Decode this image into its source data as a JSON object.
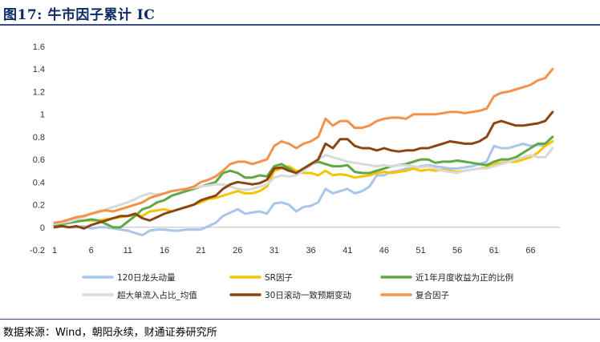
{
  "figure": {
    "title": "图17: 牛市因子累计 IC",
    "source": "数据来源：Wind，朝阳永续，财通证券研究所"
  },
  "colors": {
    "title": "#0b2a63",
    "rule": "#3a4f80"
  },
  "chart_data": {
    "type": "line",
    "title": "",
    "xlabel": "",
    "ylabel": "",
    "ylim": [
      -0.2,
      1.6
    ],
    "yticks": [
      -0.2,
      0,
      0.2,
      0.4,
      0.6,
      0.8,
      1,
      1.2,
      1.4,
      1.6
    ],
    "ytick_labels": [
      "-0.2",
      "0",
      "0.2",
      "0.4",
      "0.6",
      "0.8",
      "1",
      "1.2",
      "1.4",
      "1.6"
    ],
    "xlim": [
      1,
      70
    ],
    "xtick_labels": [
      "1",
      "6",
      "11",
      "16",
      "21",
      "26",
      "31",
      "36",
      "41",
      "46",
      "51",
      "56",
      "61",
      "66"
    ],
    "grid": false,
    "legend_position": "bottom",
    "series": [
      {
        "name": "120日龙头动量",
        "color": "#a9c5ea",
        "values": [
          0.03,
          0.02,
          0.0,
          0.0,
          0.01,
          -0.01,
          0.0,
          0.0,
          -0.01,
          -0.02,
          -0.03,
          -0.05,
          -0.07,
          -0.03,
          -0.02,
          -0.02,
          -0.03,
          -0.03,
          -0.02,
          -0.02,
          -0.02,
          0.01,
          0.04,
          0.1,
          0.13,
          0.16,
          0.12,
          0.13,
          0.14,
          0.12,
          0.21,
          0.22,
          0.2,
          0.14,
          0.18,
          0.19,
          0.22,
          0.34,
          0.3,
          0.32,
          0.34,
          0.3,
          0.32,
          0.36,
          0.46,
          0.46,
          0.49,
          0.5,
          0.52,
          0.52,
          0.54,
          0.55,
          0.54,
          0.53,
          0.52,
          0.52,
          0.53,
          0.54,
          0.56,
          0.58,
          0.72,
          0.7,
          0.7,
          0.72,
          0.74,
          0.72,
          0.73,
          0.72,
          0.76
        ]
      },
      {
        "name": "SR因子",
        "color": "#f6c400",
        "values": [
          0.02,
          0.03,
          0.04,
          0.05,
          0.06,
          0.06,
          0.06,
          0.07,
          0.08,
          0.09,
          0.1,
          0.11,
          0.1,
          0.14,
          0.15,
          0.16,
          0.14,
          0.16,
          0.18,
          0.2,
          0.22,
          0.25,
          0.26,
          0.28,
          0.3,
          0.32,
          0.3,
          0.3,
          0.32,
          0.36,
          0.5,
          0.52,
          0.54,
          0.5,
          0.48,
          0.48,
          0.46,
          0.5,
          0.46,
          0.47,
          0.46,
          0.44,
          0.45,
          0.46,
          0.48,
          0.49,
          0.48,
          0.49,
          0.5,
          0.52,
          0.5,
          0.51,
          0.5,
          0.51,
          0.5,
          0.49,
          0.5,
          0.51,
          0.52,
          0.53,
          0.56,
          0.57,
          0.58,
          0.58,
          0.6,
          0.62,
          0.66,
          0.72,
          0.76
        ]
      },
      {
        "name": "近1年月度收益为正的比例",
        "color": "#5fa843",
        "values": [
          0.02,
          0.03,
          0.04,
          0.05,
          0.06,
          0.07,
          0.06,
          0.03,
          0.0,
          0.0,
          0.05,
          0.1,
          0.16,
          0.18,
          0.22,
          0.24,
          0.28,
          0.3,
          0.32,
          0.34,
          0.36,
          0.38,
          0.4,
          0.48,
          0.5,
          0.48,
          0.44,
          0.44,
          0.46,
          0.45,
          0.54,
          0.56,
          0.52,
          0.48,
          0.52,
          0.56,
          0.58,
          0.56,
          0.54,
          0.54,
          0.55,
          0.49,
          0.48,
          0.48,
          0.5,
          0.52,
          0.54,
          0.55,
          0.56,
          0.58,
          0.6,
          0.6,
          0.57,
          0.58,
          0.58,
          0.59,
          0.58,
          0.57,
          0.56,
          0.55,
          0.58,
          0.6,
          0.6,
          0.62,
          0.66,
          0.7,
          0.74,
          0.74,
          0.8
        ]
      },
      {
        "name": "超大单流入占比_均值",
        "color": "#d9d9d9",
        "values": [
          0.03,
          0.04,
          0.05,
          0.07,
          0.09,
          0.12,
          0.13,
          0.16,
          0.18,
          0.2,
          0.22,
          0.25,
          0.28,
          0.3,
          0.29,
          0.3,
          0.32,
          0.33,
          0.34,
          0.35,
          0.36,
          0.37,
          0.38,
          0.38,
          0.36,
          0.34,
          0.33,
          0.34,
          0.36,
          0.38,
          0.44,
          0.46,
          0.45,
          0.46,
          0.5,
          0.55,
          0.6,
          0.64,
          0.62,
          0.6,
          0.58,
          0.57,
          0.56,
          0.55,
          0.54,
          0.55,
          0.54,
          0.55,
          0.55,
          0.54,
          0.53,
          0.54,
          0.52,
          0.5,
          0.49,
          0.48,
          0.5,
          0.51,
          0.52,
          0.52,
          0.54,
          0.56,
          0.58,
          0.6,
          0.62,
          0.64,
          0.62,
          0.62,
          0.7
        ]
      },
      {
        "name": "30日滚动一致预期变动",
        "color": "#8b4513",
        "values": [
          0.0,
          0.01,
          0.0,
          0.01,
          -0.01,
          0.02,
          0.04,
          0.06,
          0.08,
          0.1,
          0.1,
          0.12,
          0.08,
          0.06,
          0.09,
          0.12,
          0.14,
          0.16,
          0.18,
          0.2,
          0.24,
          0.26,
          0.28,
          0.34,
          0.38,
          0.4,
          0.39,
          0.38,
          0.39,
          0.42,
          0.52,
          0.53,
          0.5,
          0.48,
          0.52,
          0.56,
          0.6,
          0.74,
          0.7,
          0.78,
          0.78,
          0.72,
          0.7,
          0.7,
          0.68,
          0.7,
          0.68,
          0.67,
          0.68,
          0.68,
          0.7,
          0.7,
          0.72,
          0.74,
          0.76,
          0.75,
          0.74,
          0.74,
          0.76,
          0.8,
          0.92,
          0.94,
          0.92,
          0.9,
          0.9,
          0.91,
          0.92,
          0.94,
          1.02
        ]
      },
      {
        "name": "复合因子",
        "color": "#f4914a",
        "values": [
          0.04,
          0.05,
          0.07,
          0.09,
          0.1,
          0.12,
          0.14,
          0.15,
          0.14,
          0.16,
          0.18,
          0.2,
          0.22,
          0.26,
          0.28,
          0.3,
          0.32,
          0.33,
          0.34,
          0.36,
          0.4,
          0.42,
          0.45,
          0.5,
          0.56,
          0.58,
          0.58,
          0.56,
          0.58,
          0.6,
          0.72,
          0.76,
          0.74,
          0.7,
          0.74,
          0.76,
          0.8,
          0.96,
          0.9,
          0.94,
          0.94,
          0.88,
          0.88,
          0.9,
          0.94,
          0.96,
          0.97,
          0.97,
          0.96,
          1.0,
          1.0,
          1.0,
          1.0,
          1.01,
          1.02,
          1.02,
          1.01,
          1.02,
          1.03,
          1.05,
          1.16,
          1.19,
          1.2,
          1.22,
          1.24,
          1.26,
          1.3,
          1.32,
          1.4
        ]
      }
    ]
  }
}
